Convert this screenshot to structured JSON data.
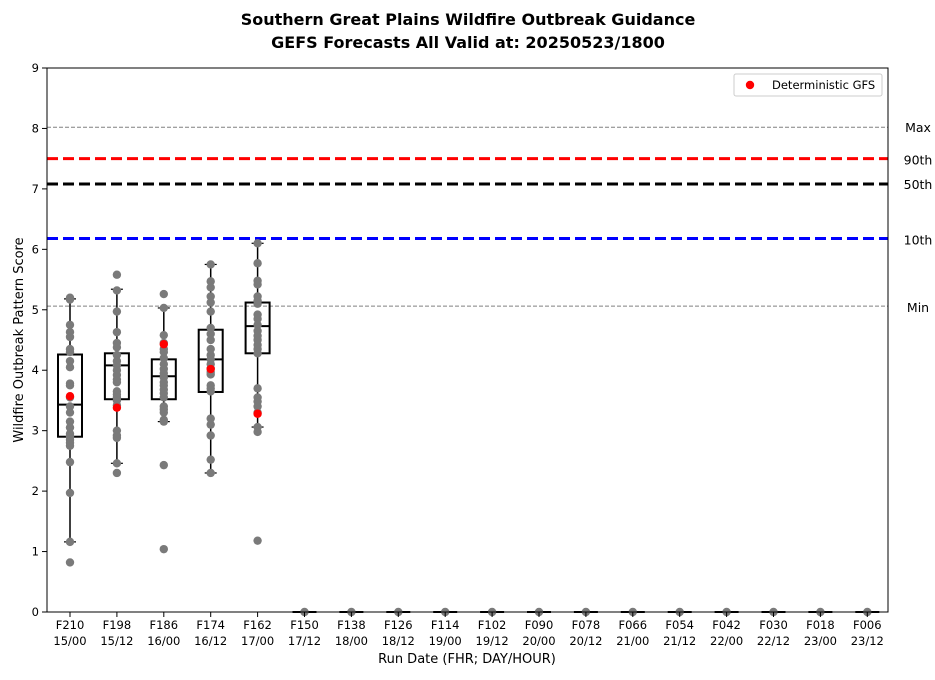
{
  "chart_data": {
    "type": "boxplot",
    "title": "Southern Great Plains Wildfire Outbreak Guidance",
    "subtitle": "GEFS Forecasts All Valid at: 20250523/1800",
    "xlabel": "Run Date (FHR; DAY/HOUR)",
    "ylabel": "Wildfire Outbreak Pattern Score",
    "ylim": [
      0,
      9
    ],
    "yticks": [
      0,
      1,
      2,
      3,
      4,
      5,
      6,
      7,
      8,
      9
    ],
    "grid": false,
    "legend": {
      "placement": "top-right",
      "entries": [
        {
          "label": "Deterministic GFS",
          "color": "#ff0000",
          "marker": "circle"
        }
      ]
    },
    "categories": [
      {
        "fhr": "F210",
        "time": "15/00"
      },
      {
        "fhr": "F198",
        "time": "15/12"
      },
      {
        "fhr": "F186",
        "time": "16/00"
      },
      {
        "fhr": "F174",
        "time": "16/12"
      },
      {
        "fhr": "F162",
        "time": "17/00"
      },
      {
        "fhr": "F150",
        "time": "17/12"
      },
      {
        "fhr": "F138",
        "time": "18/00"
      },
      {
        "fhr": "F126",
        "time": "18/12"
      },
      {
        "fhr": "F114",
        "time": "19/00"
      },
      {
        "fhr": "F102",
        "time": "19/12"
      },
      {
        "fhr": "F090",
        "time": "20/00"
      },
      {
        "fhr": "F078",
        "time": "20/12"
      },
      {
        "fhr": "F066",
        "time": "21/00"
      },
      {
        "fhr": "F054",
        "time": "21/12"
      },
      {
        "fhr": "F042",
        "time": "22/00"
      },
      {
        "fhr": "F030",
        "time": "22/12"
      },
      {
        "fhr": "F018",
        "time": "23/00"
      },
      {
        "fhr": "F006",
        "time": "23/12"
      }
    ],
    "reference_lines": [
      {
        "label": "Max",
        "value": 8.02,
        "color": "#808080",
        "style": "dashed-thin"
      },
      {
        "label": "90th",
        "value": 7.5,
        "color": "#ff0000",
        "style": "dashed-thick"
      },
      {
        "label": "50th",
        "value": 7.08,
        "color": "#000000",
        "style": "dashed-thick"
      },
      {
        "label": "10th",
        "value": 6.18,
        "color": "#0000ff",
        "style": "dashed-thick"
      },
      {
        "label": "Min",
        "value": 5.06,
        "color": "#808080",
        "style": "dashed-thin"
      }
    ],
    "boxes": [
      {
        "q1": 2.9,
        "median": 3.43,
        "q3": 4.26,
        "whisker_low": 1.16,
        "whisker_high": 5.18
      },
      {
        "q1": 3.52,
        "median": 4.08,
        "q3": 4.28,
        "whisker_low": 2.46,
        "whisker_high": 5.34
      },
      {
        "q1": 3.52,
        "median": 3.9,
        "q3": 4.18,
        "whisker_low": 3.15,
        "whisker_high": 5.03
      },
      {
        "q1": 3.64,
        "median": 4.18,
        "q3": 4.67,
        "whisker_low": 2.3,
        "whisker_high": 5.75
      },
      {
        "q1": 4.28,
        "median": 4.73,
        "q3": 5.12,
        "whisker_low": 3.06,
        "whisker_high": 6.1
      },
      {
        "q1": 0,
        "median": 0,
        "q3": 0,
        "whisker_low": 0,
        "whisker_high": 0
      },
      {
        "q1": 0,
        "median": 0,
        "q3": 0,
        "whisker_low": 0,
        "whisker_high": 0
      },
      {
        "q1": 0,
        "median": 0,
        "q3": 0,
        "whisker_low": 0,
        "whisker_high": 0
      },
      {
        "q1": 0,
        "median": 0,
        "q3": 0,
        "whisker_low": 0,
        "whisker_high": 0
      },
      {
        "q1": 0,
        "median": 0,
        "q3": 0,
        "whisker_low": 0,
        "whisker_high": 0
      },
      {
        "q1": 0,
        "median": 0,
        "q3": 0,
        "whisker_low": 0,
        "whisker_high": 0
      },
      {
        "q1": 0,
        "median": 0,
        "q3": 0,
        "whisker_low": 0,
        "whisker_high": 0
      },
      {
        "q1": 0,
        "median": 0,
        "q3": 0,
        "whisker_low": 0,
        "whisker_high": 0
      },
      {
        "q1": 0,
        "median": 0,
        "q3": 0,
        "whisker_low": 0,
        "whisker_high": 0
      },
      {
        "q1": 0,
        "median": 0,
        "q3": 0,
        "whisker_low": 0,
        "whisker_high": 0
      },
      {
        "q1": 0,
        "median": 0,
        "q3": 0,
        "whisker_low": 0,
        "whisker_high": 0
      },
      {
        "q1": 0,
        "median": 0,
        "q3": 0,
        "whisker_low": 0,
        "whisker_high": 0
      },
      {
        "q1": 0,
        "median": 0,
        "q3": 0,
        "whisker_low": 0,
        "whisker_high": 0
      }
    ],
    "ensemble_members": [
      [
        5.2,
        5.17,
        4.75,
        4.63,
        4.55,
        4.35,
        4.3,
        4.15,
        4.05,
        3.78,
        3.75,
        3.55,
        3.4,
        3.3,
        3.15,
        3.05,
        2.95,
        2.9,
        2.85,
        2.8,
        2.75,
        2.48,
        1.97,
        1.16,
        0.82
      ],
      [
        5.58,
        5.32,
        4.97,
        4.63,
        4.45,
        4.38,
        4.25,
        4.15,
        4.08,
        4.0,
        3.92,
        3.85,
        3.8,
        3.65,
        3.6,
        3.55,
        3.5,
        3.42,
        3.0,
        2.92,
        2.88,
        2.46,
        2.3
      ],
      [
        5.26,
        5.03,
        4.58,
        4.45,
        4.35,
        4.3,
        4.2,
        4.1,
        4.02,
        3.95,
        3.88,
        3.8,
        3.75,
        3.68,
        3.62,
        3.55,
        3.4,
        3.35,
        3.3,
        3.18,
        3.15,
        2.43,
        1.04
      ],
      [
        5.75,
        5.47,
        5.37,
        5.22,
        5.12,
        4.97,
        4.7,
        4.6,
        4.5,
        4.35,
        4.25,
        4.18,
        4.1,
        4.03,
        3.97,
        3.93,
        3.75,
        3.7,
        3.65,
        3.2,
        3.1,
        2.92,
        2.52,
        2.3
      ],
      [
        6.1,
        5.77,
        5.48,
        5.42,
        5.22,
        5.15,
        5.1,
        4.92,
        4.85,
        4.75,
        4.65,
        4.57,
        4.5,
        4.42,
        4.35,
        4.28,
        3.7,
        3.55,
        3.48,
        3.4,
        3.3,
        3.06,
        2.98,
        1.18
      ],
      [
        0
      ],
      [
        0
      ],
      [
        0
      ],
      [
        0
      ],
      [
        0
      ],
      [
        0
      ],
      [
        0
      ],
      [
        0
      ],
      [
        0
      ],
      [
        0
      ],
      [
        0
      ],
      [
        0
      ],
      [
        0
      ]
    ],
    "deterministic_gfs": [
      3.57,
      3.38,
      4.43,
      4.02,
      3.28,
      null,
      null,
      null,
      null,
      null,
      null,
      null,
      null,
      null,
      null,
      null,
      null,
      null
    ],
    "colors": {
      "members": "#7a7a7a",
      "deterministic": "#ff0000"
    }
  }
}
